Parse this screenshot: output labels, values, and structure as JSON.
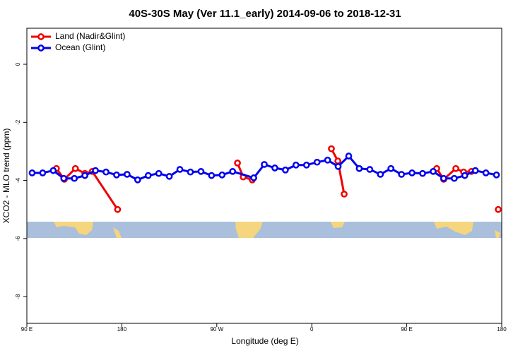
{
  "chart_data": {
    "type": "line",
    "title": "40S-30S May (Ver 11.1_early)   2014-09-06 to 2018-12-31",
    "xlabel": "Longitude (deg E)",
    "ylabel": "XCO2 - MLO trend (ppm)",
    "xlim": [
      90,
      540
    ],
    "ylim": [
      -8.92,
      1.24
    ],
    "xticks": [
      {
        "value": 90,
        "label": "90 E"
      },
      180,
      {
        "value": 270,
        "label": "90 W"
      },
      {
        "value": 360,
        "label": "0"
      },
      {
        "value": 450,
        "label": "90 E"
      },
      {
        "value": 540,
        "label": "180"
      }
    ],
    "yticks": [
      0,
      -2,
      -4,
      -6,
      -8
    ],
    "legend": "top-left",
    "series": [
      {
        "name": "Land (Nadir&Glint)",
        "color": "#ee0000",
        "x": [
          118,
          125.5,
          136,
          145,
          152,
          176,
          null,
          289.6,
          295,
          303.6,
          null,
          378.6,
          384.7,
          390.7,
          null,
          478.4,
          485,
          496.5,
          503.9,
          511.3,
          null,
          536.7
        ],
        "values": [
          -3.59,
          -3.96,
          -3.59,
          -3.76,
          -3.69,
          -5.0,
          null,
          -3.4,
          -3.88,
          -3.98,
          null,
          -2.91,
          -3.33,
          -4.47,
          null,
          -3.59,
          -3.96,
          -3.59,
          -3.71,
          -3.69,
          null,
          -5.0
        ]
      },
      {
        "name": "Ocean (Glint)",
        "color": "#0000ee",
        "x": [
          95,
          105,
          115,
          125,
          135,
          145,
          155,
          165,
          175,
          185,
          195,
          205,
          215,
          225,
          235,
          245,
          255,
          265,
          275,
          285,
          305,
          315,
          325,
          335,
          345,
          355,
          365,
          375,
          385,
          395,
          405,
          415,
          425,
          435,
          445,
          455,
          465,
          475,
          485,
          495,
          505,
          515,
          525,
          535
        ],
        "values": [
          -3.74,
          -3.74,
          -3.66,
          -3.93,
          -3.93,
          -3.83,
          -3.66,
          -3.71,
          -3.81,
          -3.79,
          -3.98,
          -3.83,
          -3.76,
          -3.86,
          -3.62,
          -3.71,
          -3.69,
          -3.83,
          -3.81,
          -3.69,
          -3.91,
          -3.45,
          -3.57,
          -3.64,
          -3.47,
          -3.47,
          -3.37,
          -3.3,
          -3.52,
          -3.16,
          -3.59,
          -3.62,
          -3.79,
          -3.59,
          -3.79,
          -3.74,
          -3.76,
          -3.69,
          -3.93,
          -3.93,
          -3.83,
          -3.66,
          -3.74,
          -3.81
        ]
      }
    ]
  }
}
